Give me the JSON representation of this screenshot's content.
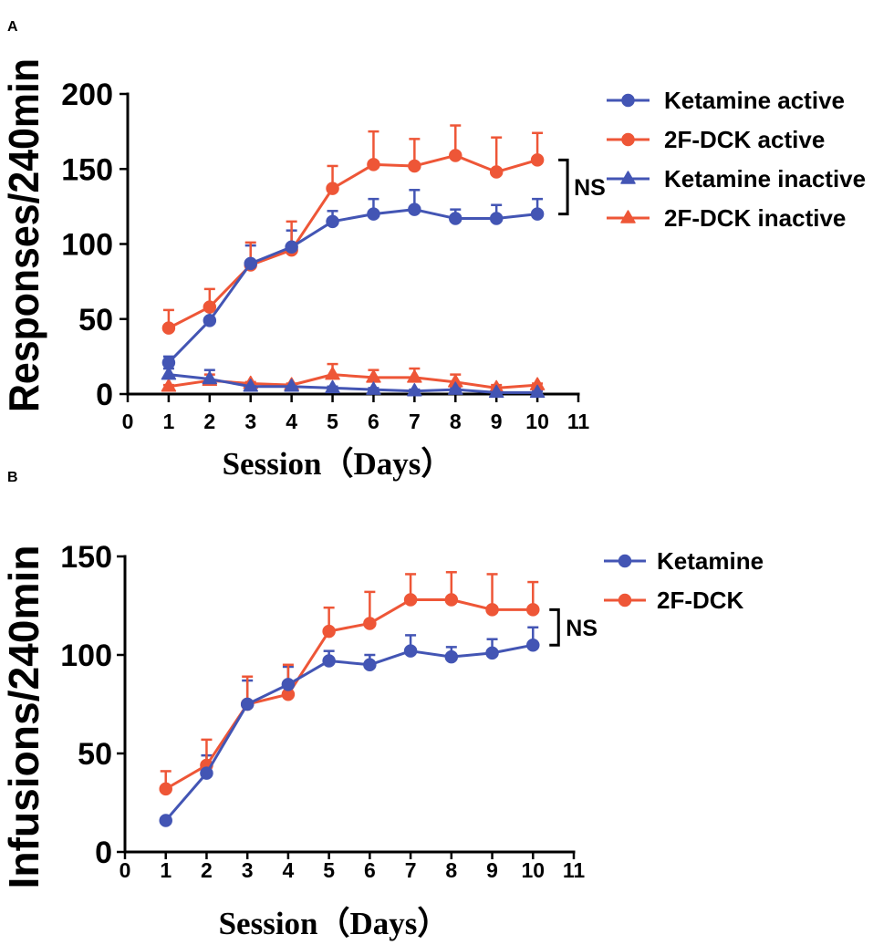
{
  "chart_data": [
    {
      "panel": "A",
      "type": "line",
      "xlabel": "Session（Days）",
      "ylabel": "Responses/240min",
      "xlim": [
        0,
        11
      ],
      "ylim": [
        0,
        200
      ],
      "x_ticks": [
        0,
        1,
        2,
        3,
        4,
        5,
        6,
        7,
        8,
        9,
        10,
        11
      ],
      "y_ticks": [
        0,
        50,
        100,
        150,
        200
      ],
      "grid": false,
      "legend": "right",
      "x": [
        1,
        2,
        3,
        4,
        5,
        6,
        7,
        8,
        9,
        10
      ],
      "series": [
        {
          "name": "Ketamine active",
          "marker": "circle",
          "color": "#4355b4",
          "values": [
            21,
            49,
            87,
            98,
            115,
            120,
            123,
            117,
            117,
            120
          ],
          "error": [
            4,
            9,
            12,
            11,
            7,
            10,
            13,
            6,
            9,
            10
          ]
        },
        {
          "name": "2F-DCK active",
          "marker": "circle",
          "color": "#ee5637",
          "values": [
            44,
            58,
            86,
            96,
            137,
            153,
            152,
            159,
            148,
            156
          ],
          "error": [
            12,
            12,
            15,
            19,
            15,
            22,
            18,
            20,
            23,
            18
          ]
        },
        {
          "name": "Ketamine inactive",
          "marker": "triangle",
          "color": "#4355b4",
          "values": [
            13,
            10,
            5,
            5,
            4,
            3,
            2,
            3,
            1,
            1
          ],
          "error": [
            4,
            6,
            1,
            1,
            1,
            1,
            1,
            1,
            1,
            1
          ]
        },
        {
          "name": "2F-DCK inactive",
          "marker": "triangle",
          "color": "#ee5637",
          "values": [
            5,
            9,
            7,
            6,
            13,
            11,
            11,
            8,
            4,
            6
          ],
          "error": [
            1,
            4,
            1,
            1,
            7,
            5,
            6,
            5,
            2,
            1
          ]
        }
      ],
      "annotations": [
        {
          "text": "NS",
          "between_series": [
            1,
            0
          ],
          "at_x": 10
        }
      ]
    },
    {
      "panel": "B",
      "type": "line",
      "xlabel": "Session（Days）",
      "ylabel": "Infusions/240min",
      "xlim": [
        0,
        11
      ],
      "ylim": [
        0,
        150
      ],
      "x_ticks": [
        0,
        1,
        2,
        3,
        4,
        5,
        6,
        7,
        8,
        9,
        10,
        11
      ],
      "y_ticks": [
        0,
        50,
        100,
        150
      ],
      "grid": false,
      "legend": "right",
      "x": [
        1,
        2,
        3,
        4,
        5,
        6,
        7,
        8,
        9,
        10
      ],
      "series": [
        {
          "name": "Ketamine",
          "marker": "circle",
          "color": "#4355b4",
          "values": [
            16,
            40,
            75,
            85,
            97,
            95,
            102,
            99,
            101,
            105
          ],
          "error": [
            0,
            9,
            12,
            9,
            5,
            5,
            8,
            5,
            7,
            9
          ]
        },
        {
          "name": "2F-DCK",
          "marker": "circle",
          "color": "#ee5637",
          "values": [
            32,
            44,
            75,
            80,
            112,
            116,
            128,
            128,
            123,
            123
          ],
          "error": [
            9,
            13,
            14,
            15,
            12,
            16,
            13,
            14,
            18,
            14
          ]
        }
      ],
      "annotations": [
        {
          "text": "NS",
          "between_series": [
            1,
            0
          ],
          "at_x": 10
        }
      ]
    }
  ]
}
